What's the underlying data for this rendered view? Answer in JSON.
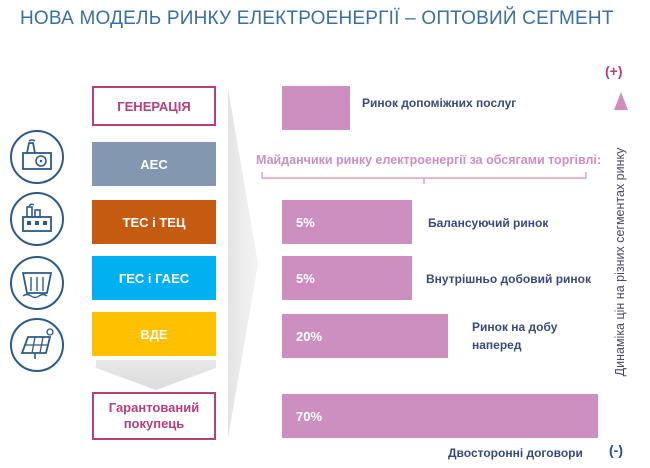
{
  "title": "НОВА МОДЕЛЬ РИНКУ ЕЛЕКТРОЕНЕРГІЇ – ОПТОВИЙ СЕГМЕНТ",
  "generation": {
    "header": "ГЕНЕРАЦІЯ",
    "sources": [
      {
        "label": "АЕС",
        "color": "#8497b0",
        "icon": "nuclear-plant-icon"
      },
      {
        "label": "ТЕС і ТЕЦ",
        "color": "#c55a11",
        "icon": "thermal-plant-icon"
      },
      {
        "label": "ГЕС і ГАЕС",
        "color": "#00b0f0",
        "icon": "hydro-dam-icon"
      },
      {
        "label": "ВДЕ",
        "color": "#ffc000",
        "icon": "solar-panel-icon"
      }
    ],
    "buyer_line1": "Гарантований",
    "buyer_line2": "покупець"
  },
  "markets": {
    "ancillary_label": "Ринок допоміжних послуг",
    "venues_caption": "Майданчики ринку електроенергії за обсягами торгівлі:",
    "balancing": {
      "share": "5%",
      "label": "Балансуючий ринок",
      "fraction": 0.05
    },
    "intraday": {
      "share": "5%",
      "label": "Внутрішньо добовий ринок",
      "fraction": 0.05
    },
    "day_ahead": {
      "share": "20%",
      "label_line1": "Ринок на добу",
      "label_line2": "наперед",
      "fraction": 0.2
    },
    "bilateral": {
      "share": "70%",
      "label": "Двосторонні договори",
      "fraction": 0.7
    }
  },
  "price_axis": {
    "plus": "(+)",
    "minus": "(-)",
    "label": "Динаміка цін на різних сегментах ринку"
  },
  "colors": {
    "accent_magenta": "#b5407f",
    "bar_pink": "#cc8fc0",
    "title_blue": "#3a6fa6",
    "arrow_top": "#cc8fc0",
    "arrow_bottom": "#1e5fa8"
  }
}
